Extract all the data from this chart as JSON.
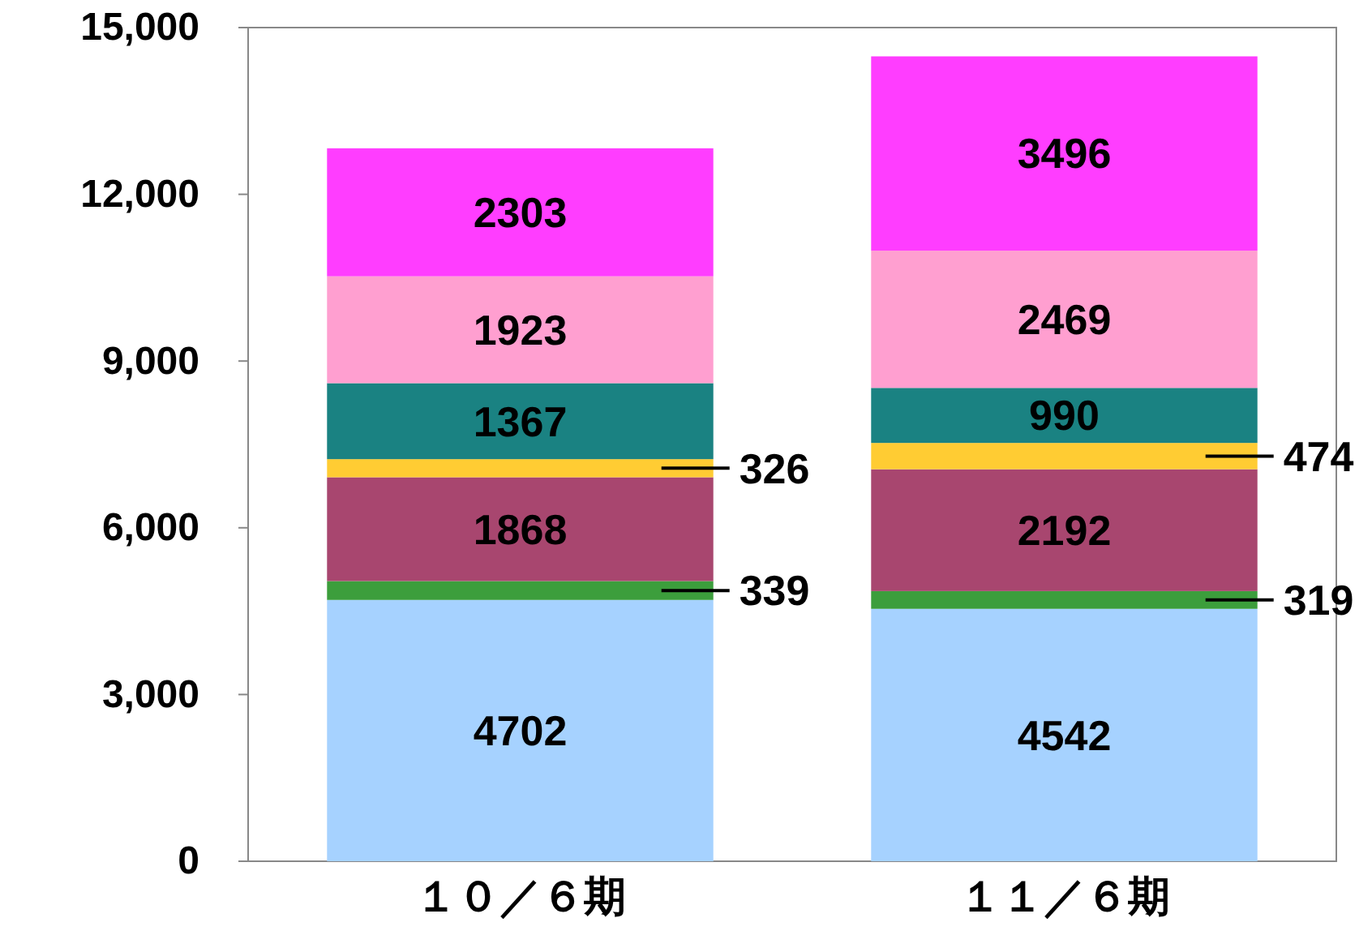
{
  "chart_data": {
    "type": "bar",
    "stacked": true,
    "categories": [
      "１０／６期",
      "１１／６期"
    ],
    "series": [
      {
        "color": "#a6d2ff",
        "values": [
          4702,
          4542
        ]
      },
      {
        "color": "#3c9e3c",
        "values": [
          339,
          319
        ]
      },
      {
        "color": "#a8466f",
        "values": [
          1868,
          2192
        ]
      },
      {
        "color": "#ffcc33",
        "values": [
          326,
          474
        ]
      },
      {
        "color": "#1a8282",
        "values": [
          1367,
          990
        ]
      },
      {
        "color": "#ff9fd0",
        "values": [
          1923,
          2469
        ]
      },
      {
        "color": "#ff3dff",
        "values": [
          2303,
          3496
        ]
      }
    ],
    "ylim": [
      0,
      15000
    ],
    "yticks": [
      {
        "value": 0,
        "label": "0"
      },
      {
        "value": 3000,
        "label": "3,000"
      },
      {
        "value": 6000,
        "label": "6,000"
      },
      {
        "value": 9000,
        "label": "9,000"
      },
      {
        "value": 12000,
        "label": "12,000"
      },
      {
        "value": 15000,
        "label": "15,000"
      }
    ],
    "data_labels": true,
    "grid": false
  }
}
